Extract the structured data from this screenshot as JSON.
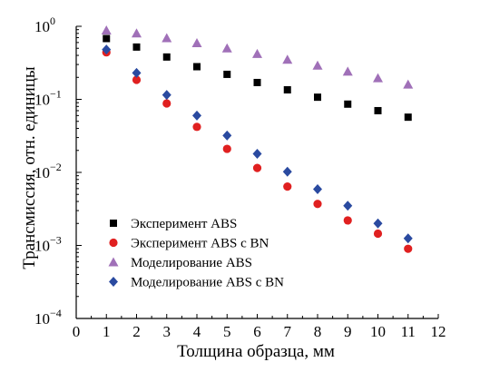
{
  "chart_data": {
    "type": "scatter",
    "xlabel": "Толщина образца, мм",
    "ylabel": "Трансмиссия, отн. единицы",
    "xlim": [
      0,
      12
    ],
    "ylim": [
      0.0001,
      1
    ],
    "yscale": "log",
    "xticks": [
      "0",
      "1",
      "2",
      "3",
      "4",
      "5",
      "6",
      "7",
      "8",
      "9",
      "10",
      "11",
      "12"
    ],
    "yticks": [
      {
        "value": 1,
        "base": "10",
        "exp": "0"
      },
      {
        "value": 0.1,
        "base": "10",
        "exp": "−1"
      },
      {
        "value": 0.01,
        "base": "10",
        "exp": "−2"
      },
      {
        "value": 0.001,
        "base": "10",
        "exp": "−3"
      },
      {
        "value": 0.0001,
        "base": "10",
        "exp": "−4"
      }
    ],
    "legend_position": "bottom-left",
    "grid": false,
    "series": [
      {
        "name": "Эксперимент ABS",
        "marker": "square",
        "color": "#000000",
        "x": [
          1,
          2,
          3,
          4,
          5,
          6,
          7,
          8,
          9,
          10,
          11
        ],
        "y": [
          0.68,
          0.52,
          0.38,
          0.28,
          0.22,
          0.17,
          0.135,
          0.107,
          0.086,
          0.07,
          0.057
        ]
      },
      {
        "name": "Эксперимент ABS с BN",
        "marker": "circle",
        "color": "#e02020",
        "x": [
          1,
          2,
          3,
          4,
          5,
          6,
          7,
          8,
          9,
          10,
          11
        ],
        "y": [
          0.44,
          0.185,
          0.088,
          0.042,
          0.021,
          0.0115,
          0.0064,
          0.0037,
          0.0022,
          0.00145,
          0.0009
        ]
      },
      {
        "name": "Моделирование ABS",
        "marker": "triangle",
        "color": "#a070b8",
        "x": [
          1,
          2,
          3,
          4,
          5,
          6,
          7,
          8,
          9,
          10,
          11
        ],
        "y": [
          0.88,
          0.8,
          0.69,
          0.59,
          0.5,
          0.42,
          0.35,
          0.29,
          0.24,
          0.195,
          0.16
        ]
      },
      {
        "name": "Моделирование ABS с BN",
        "marker": "diamond",
        "color": "#2a4aa0",
        "x": [
          1,
          2,
          3,
          4,
          5,
          6,
          7,
          8,
          9,
          10,
          11
        ],
        "y": [
          0.48,
          0.23,
          0.115,
          0.06,
          0.032,
          0.018,
          0.0102,
          0.0059,
          0.0035,
          0.002,
          0.00125
        ]
      }
    ]
  }
}
